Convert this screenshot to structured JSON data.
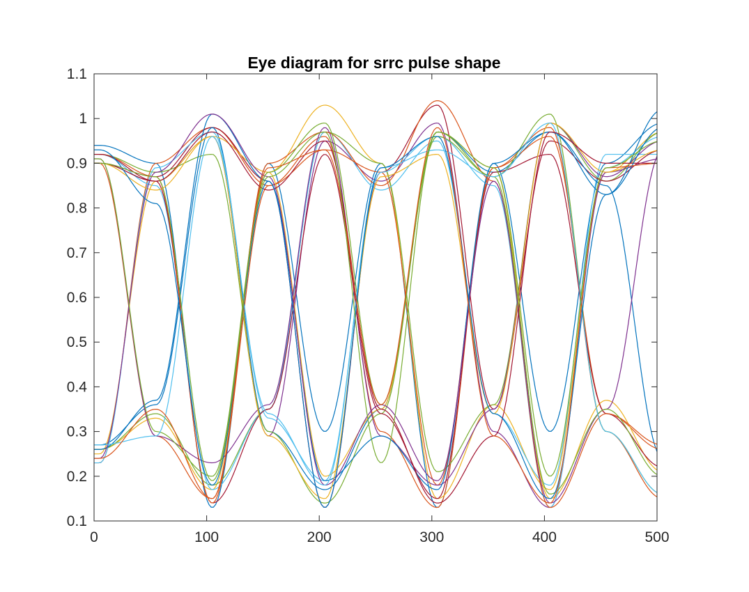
{
  "chart_data": {
    "type": "line",
    "title": "Eye diagram for srrc pulse shape",
    "xlabel": "",
    "ylabel": "",
    "xlim": [
      0,
      500
    ],
    "ylim": [
      0.1,
      1.1
    ],
    "x_ticks": [
      0,
      100,
      200,
      300,
      400,
      500
    ],
    "x_tick_labels": [
      "0",
      "100",
      "200",
      "300",
      "400",
      "500"
    ],
    "y_ticks": [
      0.1,
      0.2,
      0.3,
      0.4,
      0.5,
      0.6,
      0.7,
      0.8,
      0.9,
      1.0,
      1.1
    ],
    "y_tick_labels": [
      "0.1",
      "0.2",
      "0.3",
      "0.4",
      "0.5",
      "0.6",
      "0.7",
      "0.8",
      "0.9",
      "1",
      "1.1"
    ],
    "grid": false,
    "legend": "none",
    "symbol_period": 50,
    "first_transition_sample": 5,
    "levels": {
      "low": 0.13,
      "high": 1.0,
      "crossing": 0.6,
      "upper_null": 0.893,
      "lower_null": 0.28
    },
    "colors": [
      "#0072bd",
      "#d95319",
      "#edb120",
      "#7e2f8e",
      "#77ac30",
      "#4dbeee",
      "#a2142f"
    ],
    "series": [
      {
        "color": "#0072bd",
        "values": [
          0.94,
          0.9,
          0.13,
          0.9,
          0.3,
          0.9,
          0.13,
          0.9,
          0.3,
          0.9,
          0.99
        ]
      },
      {
        "color": "#d95319",
        "values": [
          0.23,
          0.9,
          0.98,
          0.85,
          0.96,
          0.3,
          0.13,
          0.89,
          0.98,
          0.3,
          0.15
        ]
      },
      {
        "color": "#edb120",
        "values": [
          0.26,
          0.33,
          0.17,
          0.88,
          1.03,
          0.9,
          0.15,
          0.36,
          0.17,
          0.88,
          0.97
        ]
      },
      {
        "color": "#7e2f8e",
        "values": [
          0.9,
          0.86,
          0.96,
          0.29,
          0.95,
          0.86,
          0.99,
          0.3,
          0.13,
          0.88,
          0.91
        ]
      },
      {
        "color": "#77ac30",
        "values": [
          0.26,
          0.34,
          0.18,
          0.35,
          0.97,
          0.9,
          0.21,
          0.36,
          0.99,
          0.86,
          0.97
        ]
      },
      {
        "color": "#4dbeee",
        "values": [
          0.92,
          0.85,
          0.17,
          0.35,
          0.97,
          0.84,
          0.95,
          0.34,
          0.18,
          0.92,
          0.92
        ]
      },
      {
        "color": "#a2142f",
        "values": [
          0.9,
          0.87,
          0.98,
          0.86,
          0.13,
          0.88,
          1.03,
          0.35,
          0.95,
          0.86,
          0.93
        ]
      },
      {
        "color": "#0072bd",
        "values": [
          0.27,
          0.36,
          0.98,
          0.3,
          0.17,
          0.35,
          0.97,
          0.88,
          0.97,
          0.85,
          0.24
        ]
      },
      {
        "color": "#d95319",
        "values": [
          0.9,
          0.29,
          0.15,
          0.85,
          0.93,
          0.88,
          0.18,
          0.89,
          0.96,
          0.34,
          0.26
        ]
      },
      {
        "color": "#edb120",
        "values": [
          0.25,
          0.86,
          0.96,
          0.88,
          0.2,
          0.35,
          0.97,
          0.89,
          0.15,
          0.37,
          0.21
        ]
      },
      {
        "color": "#7e2f8e",
        "values": [
          0.91,
          0.29,
          0.23,
          0.36,
          0.98,
          0.29,
          0.18,
          0.35,
          0.99,
          0.87,
          0.95
        ]
      },
      {
        "color": "#77ac30",
        "values": [
          0.92,
          0.88,
          0.92,
          0.3,
          0.14,
          0.34,
          0.97,
          0.87,
          1.01,
          0.3,
          0.16
        ]
      },
      {
        "color": "#4dbeee",
        "values": [
          0.23,
          0.89,
          0.97,
          0.33,
          0.19,
          0.88,
          0.96,
          0.85,
          0.13,
          0.89,
          0.96
        ]
      },
      {
        "color": "#a2142f",
        "values": [
          0.9,
          0.86,
          0.14,
          0.35,
          0.92,
          0.34,
          0.15,
          0.88,
          0.92,
          0.34,
          0.22
        ]
      },
      {
        "color": "#0072bd",
        "values": [
          0.26,
          0.37,
          1.01,
          0.86,
          0.19,
          0.29,
          0.17,
          0.9,
          0.97,
          0.83,
          1.02
        ]
      },
      {
        "color": "#d95319",
        "values": [
          0.92,
          0.87,
          0.14,
          0.9,
          0.97,
          0.85,
          1.04,
          0.86,
          0.13,
          0.34,
          0.27
        ]
      },
      {
        "color": "#edb120",
        "values": [
          0.9,
          0.84,
          0.96,
          0.29,
          0.15,
          0.87,
          0.92,
          0.34,
          0.99,
          0.88,
          0.93
        ]
      },
      {
        "color": "#7e2f8e",
        "values": [
          0.24,
          0.88,
          1.01,
          0.87,
          0.18,
          0.36,
          0.19,
          0.86,
          0.14,
          0.35,
          0.93
        ]
      },
      {
        "color": "#77ac30",
        "values": [
          0.91,
          0.3,
          0.2,
          0.88,
          0.99,
          0.36,
          0.96,
          0.87,
          0.16,
          0.35,
          0.2
        ]
      },
      {
        "color": "#4dbeee",
        "values": [
          0.27,
          0.29,
          0.96,
          0.34,
          0.18,
          0.89,
          0.93,
          0.87,
          0.99,
          0.3,
          0.16
        ]
      },
      {
        "color": "#a2142f",
        "values": [
          0.92,
          0.86,
          0.97,
          0.84,
          0.95,
          0.35,
          0.14,
          0.29,
          0.97,
          0.9,
          0.9
        ]
      },
      {
        "color": "#0072bd",
        "values": [
          0.93,
          0.81,
          0.18,
          0.86,
          0.13,
          0.89,
          0.96,
          0.34,
          0.15,
          0.83,
          0.98
        ]
      },
      {
        "color": "#d95319",
        "values": [
          0.24,
          0.35,
          0.15,
          0.89,
          0.93,
          0.36,
          0.98,
          0.29,
          0.14,
          0.89,
          0.9
        ]
      },
      {
        "color": "#77ac30",
        "values": [
          0.9,
          0.87,
          0.19,
          0.87,
          0.97,
          0.23,
          0.97,
          0.89,
          0.2,
          0.89,
          0.95
        ]
      }
    ]
  }
}
